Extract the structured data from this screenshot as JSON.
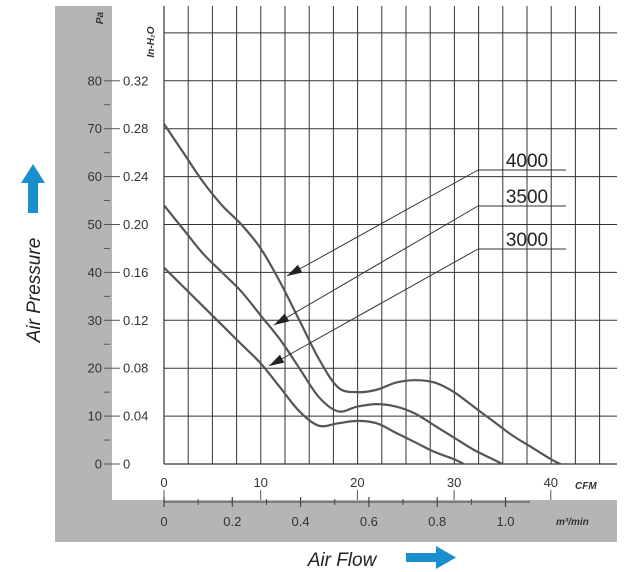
{
  "chart_data": {
    "type": "line",
    "x_axis": {
      "primary_unit": "CFM",
      "primary_ticks": [
        "0",
        "10",
        "20",
        "30",
        "40"
      ],
      "primary_range": [
        0,
        42
      ],
      "secondary_unit": "m³/min",
      "secondary_ticks": [
        "0",
        "0.2",
        "0.4",
        "0.6",
        "0.8",
        "1.0"
      ],
      "title": "Air Flow"
    },
    "y_axis": {
      "primary_unit": "Pa",
      "primary_ticks": [
        "0",
        "10",
        "20",
        "30",
        "40",
        "50",
        "60",
        "70",
        "80"
      ],
      "primary_range": [
        0,
        88
      ],
      "secondary_unit": "In-H₂O",
      "secondary_ticks": [
        "0",
        "0.04",
        "0.08",
        "0.12",
        "0.16",
        "0.20",
        "0.24",
        "0.28",
        "0.32"
      ],
      "title": "Air Pressure"
    },
    "grid": true,
    "series": [
      {
        "name": "4000",
        "x": [
          0,
          2,
          4,
          6,
          8,
          10,
          12,
          14,
          16,
          18,
          20,
          22,
          24,
          26,
          28,
          30,
          32,
          34,
          36,
          38,
          40,
          41
        ],
        "y": [
          71,
          65,
          59,
          54,
          50,
          45,
          38,
          30,
          22,
          16,
          15,
          15.5,
          17,
          17.5,
          17,
          15,
          12,
          9,
          6,
          3.5,
          1,
          0
        ]
      },
      {
        "name": "3500",
        "x": [
          0,
          2,
          4,
          6,
          8,
          10,
          12,
          14,
          16,
          18,
          20,
          22,
          24,
          26,
          28,
          30,
          32,
          34,
          35
        ],
        "y": [
          54,
          49,
          44,
          40,
          36,
          31,
          26,
          20,
          14,
          11,
          12,
          12.5,
          12,
          10.5,
          8,
          5.5,
          3,
          1,
          0
        ]
      },
      {
        "name": "3000",
        "x": [
          0,
          2,
          4,
          6,
          8,
          10,
          12,
          14,
          16,
          18,
          20,
          22,
          24,
          26,
          28,
          30,
          31
        ],
        "y": [
          41,
          37,
          33,
          29,
          25,
          21,
          16,
          11,
          8,
          8.5,
          9,
          8.5,
          6.5,
          4.5,
          2.5,
          1,
          0
        ]
      }
    ]
  },
  "colors": {
    "curve": "#555555",
    "grid": "#333333",
    "frame": "#b5b5b5",
    "arrow": "#1a8fd0"
  },
  "icons": {
    "y_arrow": "arrow-up-icon",
    "x_arrow": "arrow-right-icon"
  }
}
